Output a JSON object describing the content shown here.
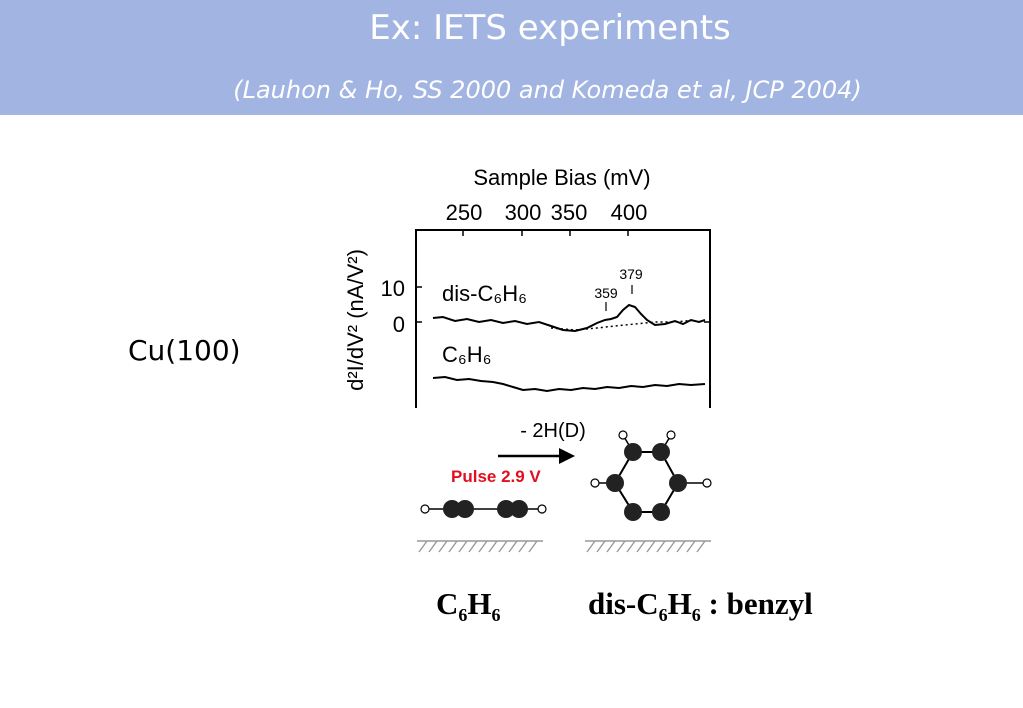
{
  "header": {
    "title": "Ex: IETS experiments",
    "subtitle": "(Lauhon & Ho, SS 2000 and Komeda et al, JCP 2004)",
    "background_color": "#a2b4e2"
  },
  "substrate_label": "Cu(100)",
  "figure": {
    "top_axis_label": "Sample Bias (mV)",
    "top_axis_ticks": [
      "250",
      "300",
      "350",
      "400"
    ],
    "y_axis_label": "d²I/dV² (nA/V²)",
    "y_ticks": [
      "10",
      "0"
    ],
    "traces": [
      {
        "label": "dis-C₆H₆",
        "peaks": [
          "359",
          "379"
        ]
      },
      {
        "label": "C₆H₆"
      }
    ],
    "reaction_label": "- 2H(D)",
    "pulse_label": "Pulse 2.9 V",
    "pulse_color": "#e01020"
  },
  "captions": {
    "left": {
      "prefix": "C",
      "sub1": "6",
      "mid": "H",
      "sub2": "6"
    },
    "right": {
      "prefix": "dis-C",
      "sub1": "6",
      "mid": "H",
      "sub2": "6",
      "suffix": " : benzyl"
    }
  }
}
